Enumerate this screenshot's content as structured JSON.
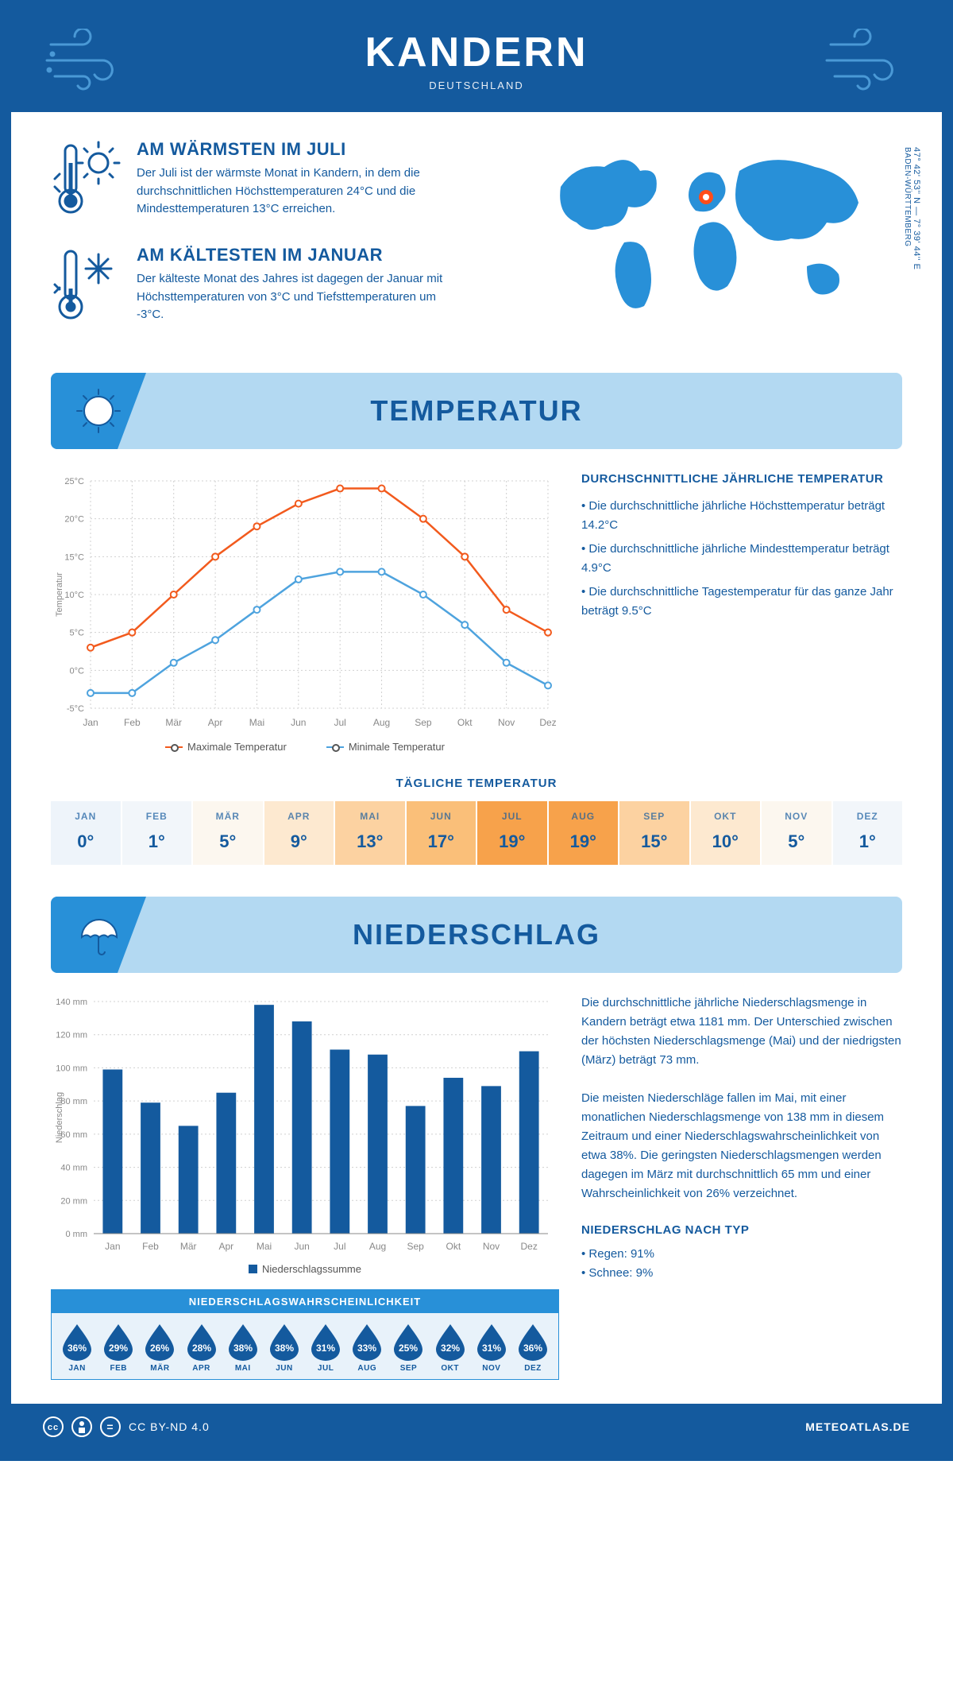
{
  "header": {
    "city": "KANDERN",
    "country": "DEUTSCHLAND"
  },
  "location": {
    "coords": "47° 42' 53'' N — 7° 39' 44'' E",
    "region": "BADEN-WÜRTTEMBERG"
  },
  "warm": {
    "title": "AM WÄRMSTEN IM JULI",
    "text": "Der Juli ist der wärmste Monat in Kandern, in dem die durchschnittlichen Höchsttemperaturen 24°C und die Mindesttemperaturen 13°C erreichen."
  },
  "cold": {
    "title": "AM KÄLTESTEN IM JANUAR",
    "text": "Der kälteste Monat des Jahres ist dagegen der Januar mit Höchsttemperaturen von 3°C und Tiefsttemperaturen um -3°C."
  },
  "temp_section": {
    "banner": "TEMPERATUR",
    "chart": {
      "months": [
        "Jan",
        "Feb",
        "Mär",
        "Apr",
        "Mai",
        "Jun",
        "Jul",
        "Aug",
        "Sep",
        "Okt",
        "Nov",
        "Dez"
      ],
      "max": [
        3,
        5,
        10,
        15,
        19,
        22,
        24,
        24,
        20,
        15,
        8,
        5
      ],
      "min": [
        -3,
        -3,
        1,
        4,
        8,
        12,
        13,
        13,
        10,
        6,
        1,
        -2
      ],
      "max_color": "#f25a1d",
      "min_color": "#4ea3de",
      "y_range": [
        -5,
        25
      ],
      "y_step": 5,
      "y_title": "Temperatur",
      "grid_color": "#d0d0d0",
      "legend_max": "Maximale Temperatur",
      "legend_min": "Minimale Temperatur"
    },
    "side": {
      "title": "DURCHSCHNITTLICHE JÄHRLICHE TEMPERATUR",
      "b1": "• Die durchschnittliche jährliche Höchsttemperatur beträgt 14.2°C",
      "b2": "• Die durchschnittliche jährliche Mindesttemperatur beträgt 4.9°C",
      "b3": "• Die durchschnittliche Tagestemperatur für das ganze Jahr beträgt 9.5°C"
    },
    "daily": {
      "title": "TÄGLICHE TEMPERATUR",
      "months": [
        "JAN",
        "FEB",
        "MÄR",
        "APR",
        "MAI",
        "JUN",
        "JUL",
        "AUG",
        "SEP",
        "OKT",
        "NOV",
        "DEZ"
      ],
      "values": [
        "0°",
        "1°",
        "5°",
        "9°",
        "13°",
        "17°",
        "19°",
        "19°",
        "15°",
        "10°",
        "5°",
        "1°"
      ],
      "bg_colors": [
        "#eef4fa",
        "#f2f6fa",
        "#fcf7ef",
        "#fde9d0",
        "#fcd2a1",
        "#fabf79",
        "#f7a24b",
        "#f7a24b",
        "#fcd2a1",
        "#fde9d0",
        "#fcf7ef",
        "#f2f6fa"
      ]
    }
  },
  "precip_section": {
    "banner": "NIEDERSCHLAG",
    "chart": {
      "months": [
        "Jan",
        "Feb",
        "Mär",
        "Apr",
        "Mai",
        "Jun",
        "Jul",
        "Aug",
        "Sep",
        "Okt",
        "Nov",
        "Dez"
      ],
      "values": [
        99,
        79,
        65,
        85,
        138,
        128,
        111,
        108,
        77,
        94,
        89,
        110
      ],
      "y_range": [
        0,
        140
      ],
      "y_step": 20,
      "y_title": "Niederschlag",
      "bar_color": "#145a9e",
      "grid_color": "#d0d0d0",
      "legend": "Niederschlagssumme"
    },
    "text": {
      "p1": "Die durchschnittliche jährliche Niederschlagsmenge in Kandern beträgt etwa 1181 mm. Der Unterschied zwischen der höchsten Niederschlagsmenge (Mai) und der niedrigsten (März) beträgt 73 mm.",
      "p2": "Die meisten Niederschläge fallen im Mai, mit einer monatlichen Niederschlagsmenge von 138 mm in diesem Zeitraum und einer Niederschlagswahrscheinlichkeit von etwa 38%. Die geringsten Niederschlagsmengen werden dagegen im März mit durchschnittlich 65 mm und einer Wahrscheinlichkeit von 26% verzeichnet.",
      "type_title": "NIEDERSCHLAG NACH TYP",
      "type1": "• Regen: 91%",
      "type2": "• Schnee: 9%"
    },
    "prob": {
      "title": "NIEDERSCHLAGSWAHRSCHEINLICHKEIT",
      "months": [
        "JAN",
        "FEB",
        "MÄR",
        "APR",
        "MAI",
        "JUN",
        "JUL",
        "AUG",
        "SEP",
        "OKT",
        "NOV",
        "DEZ"
      ],
      "values": [
        "36%",
        "29%",
        "26%",
        "28%",
        "38%",
        "38%",
        "31%",
        "33%",
        "25%",
        "32%",
        "31%",
        "36%"
      ]
    }
  },
  "footer": {
    "license": "CC BY-ND 4.0",
    "site": "METEOATLAS.DE"
  }
}
